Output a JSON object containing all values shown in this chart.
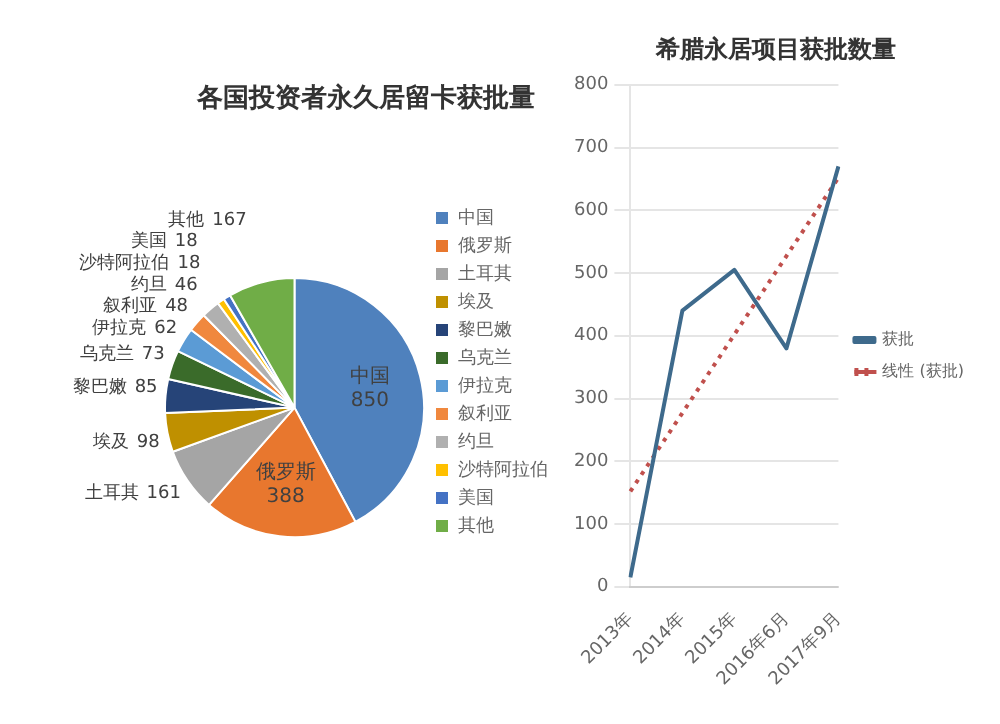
{
  "chart_data": [
    {
      "type": "pie",
      "title": "各国投资者永久居留卡获批量",
      "categories": [
        "中国",
        "俄罗斯",
        "土耳其",
        "埃及",
        "黎巴嫩",
        "乌克兰",
        "伊拉克",
        "叙利亚",
        "约旦",
        "沙特阿拉伯",
        "美国",
        "其他"
      ],
      "values": [
        850,
        388,
        161,
        98,
        85,
        73,
        62,
        48,
        46,
        18,
        18,
        167
      ],
      "colors": [
        "#4f81bd",
        "#e8772e",
        "#a5a5a5",
        "#bf9000",
        "#264478",
        "#3a6b2a",
        "#5b9bd5",
        "#f0883e",
        "#b0b0b0",
        "#ffc000",
        "#4472c4",
        "#70ad47"
      ],
      "data_labels": true,
      "legend": "right"
    },
    {
      "type": "line",
      "title": "希腊永居项目获批数量",
      "categories": [
        "2013年",
        "2014年",
        "2015年",
        "2016年6月",
        "2017年9月"
      ],
      "series": [
        {
          "name": "获批",
          "color": "#3e6a8c",
          "values": [
            15,
            440,
            505,
            380,
            670
          ]
        },
        {
          "name": "线性 (获批)",
          "color": "#c0504d",
          "line_style": "dotted",
          "values": [
            152,
            277,
            402,
            527,
            652
          ]
        }
      ],
      "ylim": [
        0,
        800
      ],
      "yticks": [
        0,
        100,
        200,
        300,
        400,
        500,
        600,
        700,
        800
      ],
      "grid": "y",
      "marker": "none",
      "legend": "right"
    }
  ]
}
